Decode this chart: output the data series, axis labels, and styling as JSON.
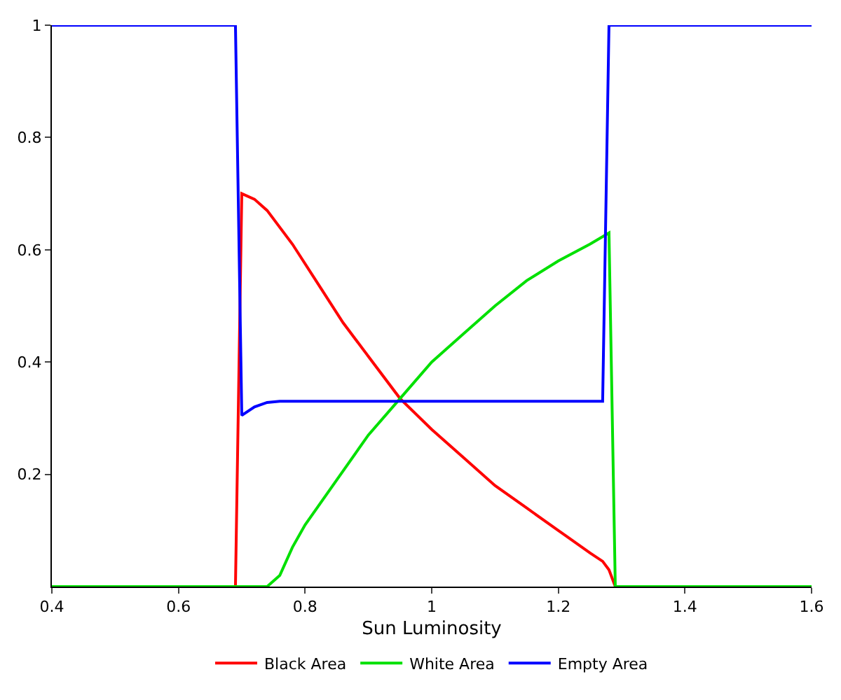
{
  "chart_data": {
    "type": "line",
    "xlabel": "Sun Luminosity",
    "xlim": [
      0.4,
      1.6
    ],
    "xticks": [
      0.4,
      0.6,
      0.8,
      1,
      1.2,
      1.4,
      1.6
    ],
    "ylim": [
      0,
      1
    ],
    "yticks": [
      0.2,
      0.4,
      0.6,
      0.8,
      1
    ],
    "legend": "bottom",
    "series": [
      {
        "name": "Black Area",
        "color": "#ff0000",
        "x": [
          0.4,
          0.69,
          0.7,
          0.72,
          0.74,
          0.78,
          0.82,
          0.86,
          0.9,
          0.95,
          1.0,
          1.05,
          1.1,
          1.15,
          1.2,
          1.25,
          1.27,
          1.28,
          1.29,
          1.6
        ],
        "values": [
          0,
          0,
          0.7,
          0.69,
          0.67,
          0.61,
          0.54,
          0.47,
          0.41,
          0.335,
          0.28,
          0.23,
          0.18,
          0.14,
          0.1,
          0.06,
          0.045,
          0.03,
          0,
          0
        ]
      },
      {
        "name": "White Area",
        "color": "#00e000",
        "x": [
          0.4,
          0.74,
          0.76,
          0.78,
          0.8,
          0.85,
          0.9,
          0.95,
          1.0,
          1.05,
          1.1,
          1.15,
          1.2,
          1.25,
          1.28,
          1.29,
          1.6
        ],
        "values": [
          0,
          0,
          0.02,
          0.07,
          0.11,
          0.19,
          0.27,
          0.335,
          0.4,
          0.45,
          0.5,
          0.545,
          0.58,
          0.61,
          0.63,
          0,
          0
        ]
      },
      {
        "name": "Empty Area",
        "color": "#0000ff",
        "x": [
          0.4,
          0.69,
          0.7,
          0.72,
          0.74,
          0.76,
          1.0,
          1.27,
          1.28,
          1.6
        ],
        "values": [
          1,
          1,
          0.305,
          0.32,
          0.328,
          0.33,
          0.33,
          0.33,
          1,
          1
        ]
      }
    ]
  }
}
